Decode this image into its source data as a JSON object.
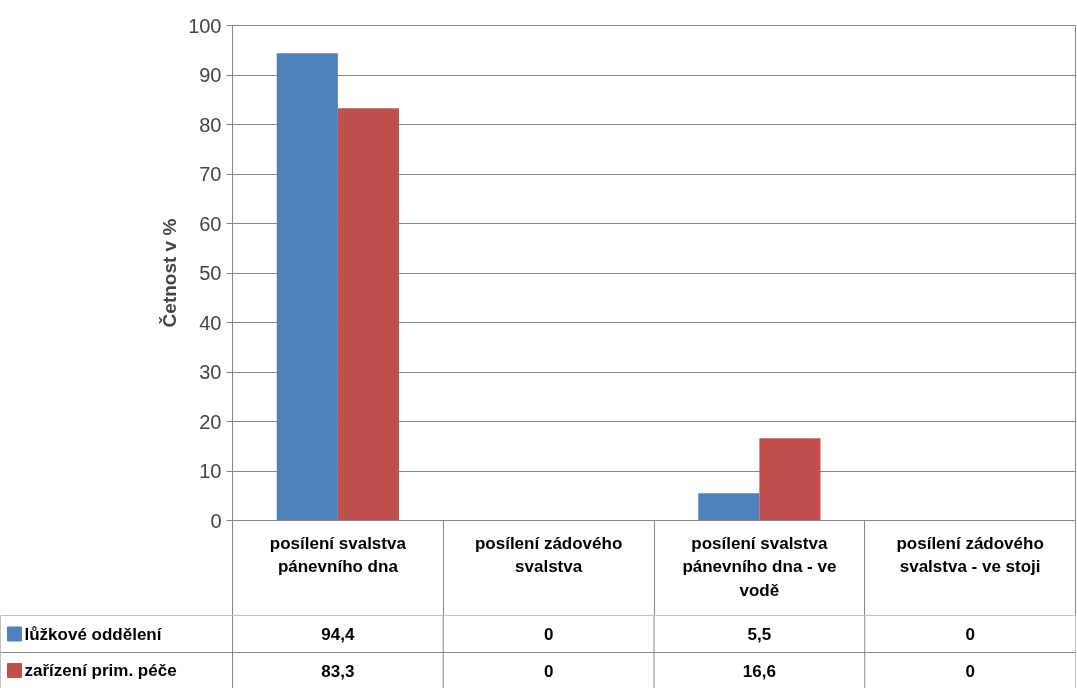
{
  "chart_data": {
    "type": "bar",
    "ylabel": "Četnost v %",
    "categories": [
      "posílení svalstva pánevního dna",
      "posílení zádového svalstva",
      "posílení svalstva pánevního dna - ve vodě",
      "posílení zádového svalstva - ve stoji"
    ],
    "series": [
      {
        "name": "lůžkové oddělení",
        "color": "#4f81bd",
        "values": [
          94.4,
          0,
          5.5,
          0
        ],
        "value_labels": [
          "94,4",
          "0",
          "5,5",
          "0"
        ]
      },
      {
        "name": "zařízení prim. péče",
        "color": "#c0504d",
        "values": [
          83.3,
          0,
          16.6,
          0
        ],
        "value_labels": [
          "83,3",
          "0",
          "16,6",
          "0"
        ]
      }
    ],
    "ylim": [
      0,
      100
    ],
    "yticks": [
      0,
      10,
      20,
      30,
      40,
      50,
      60,
      70,
      80,
      90,
      100
    ],
    "grid": "y",
    "legend": "bottom"
  }
}
